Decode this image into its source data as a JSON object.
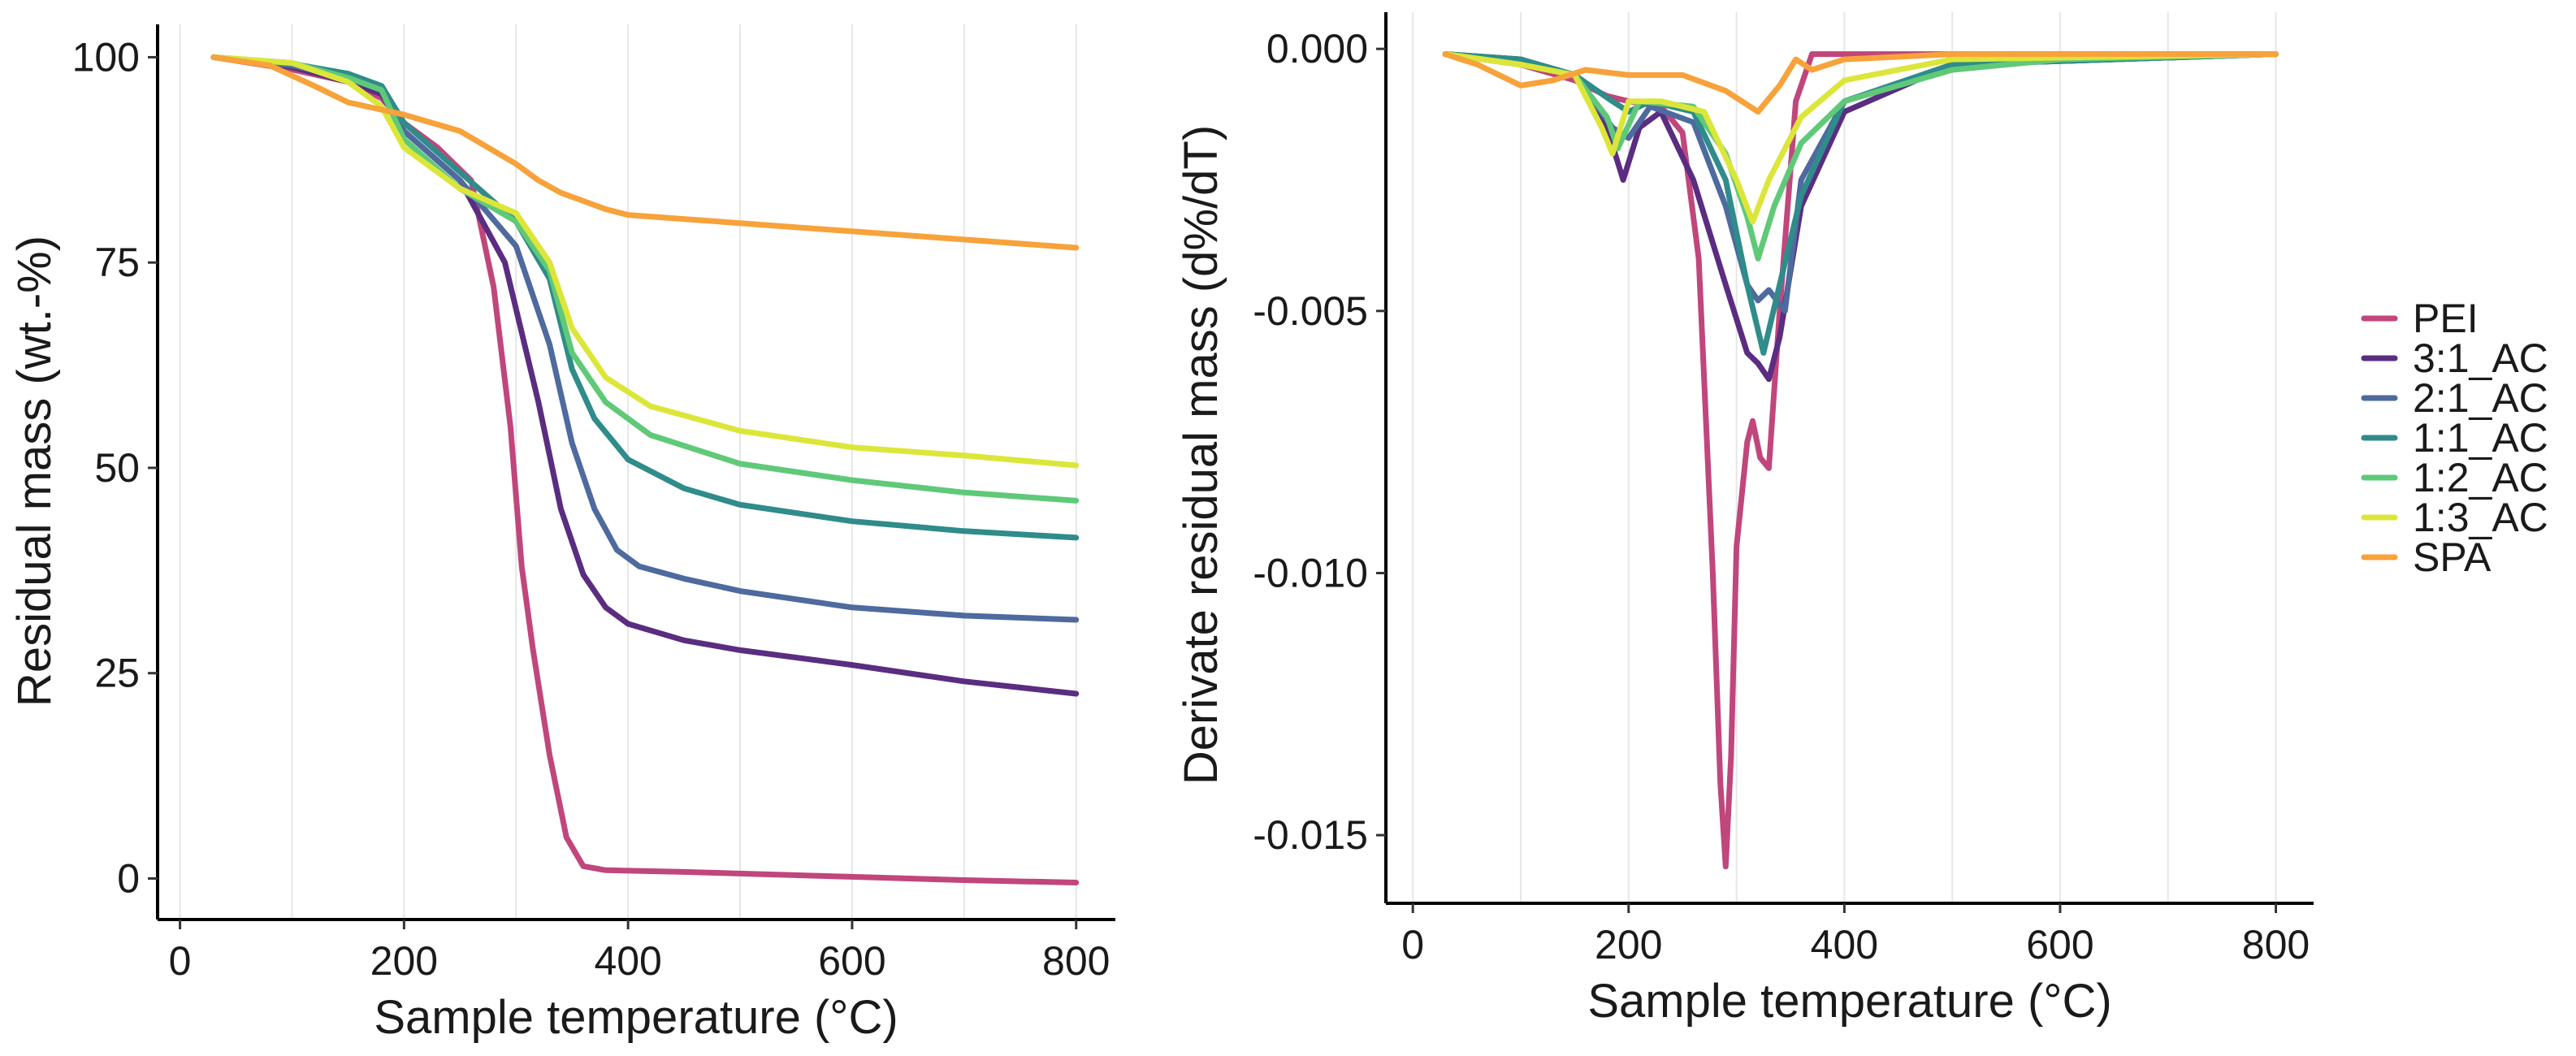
{
  "chart_data": [
    {
      "type": "line",
      "title": "",
      "xlabel": "Sample temperature (°C)",
      "ylabel": "Residual mass (wt.-%)",
      "xlim": [
        -20,
        835
      ],
      "ylim": [
        -5,
        104
      ],
      "x_ticks": [
        0,
        200,
        400,
        600,
        800
      ],
      "x_tick_labels": [
        "0",
        "200",
        "400",
        "600",
        "800"
      ],
      "y_ticks": [
        0,
        25,
        50,
        75,
        100
      ],
      "y_tick_labels": [
        "0",
        "25",
        "50",
        "75",
        "100"
      ],
      "x_minor_grid": [
        100,
        300,
        500,
        700
      ],
      "y_minor_grid": [
        12.5,
        37.5,
        62.5,
        87.5
      ],
      "grid": "vertical only",
      "series": [
        {
          "name": "PEI",
          "color": "#c0467c",
          "x": [
            30,
            100,
            150,
            180,
            200,
            230,
            260,
            280,
            295,
            305,
            315,
            330,
            345,
            360,
            380,
            450,
            600,
            700,
            800
          ],
          "y": [
            100,
            98.5,
            97,
            95,
            92,
            89,
            85,
            72,
            55,
            38,
            28,
            15,
            5,
            1.5,
            1,
            0.8,
            0.2,
            -0.2,
            -0.5
          ]
        },
        {
          "name": "3:1_AC",
          "color": "#5a2d81",
          "x": [
            30,
            100,
            150,
            180,
            200,
            250,
            290,
            320,
            340,
            360,
            380,
            400,
            450,
            500,
            600,
            700,
            800
          ],
          "y": [
            100,
            98.8,
            97,
            95.5,
            91,
            85,
            75,
            58,
            45,
            37,
            33,
            31,
            29,
            27.8,
            26,
            24,
            22.5
          ]
        },
        {
          "name": "2:1_AC",
          "color": "#4e6a9e",
          "x": [
            30,
            100,
            150,
            180,
            200,
            250,
            300,
            330,
            350,
            370,
            390,
            410,
            450,
            500,
            600,
            700,
            800
          ],
          "y": [
            100,
            99,
            97.5,
            96,
            91,
            85,
            77,
            65,
            53,
            45,
            40,
            38,
            36.5,
            35,
            33,
            32,
            31.5
          ]
        },
        {
          "name": "1:1_AC",
          "color": "#2f8c8a",
          "x": [
            30,
            100,
            150,
            180,
            200,
            250,
            300,
            330,
            350,
            370,
            400,
            450,
            500,
            600,
            700,
            800
          ],
          "y": [
            100,
            99.2,
            98,
            96.5,
            92,
            86,
            80,
            73,
            62,
            56,
            51,
            47.5,
            45.5,
            43.5,
            42.3,
            41.5
          ]
        },
        {
          "name": "1:2_AC",
          "color": "#5fc978",
          "x": [
            30,
            100,
            150,
            180,
            200,
            250,
            300,
            330,
            350,
            380,
            420,
            500,
            600,
            700,
            800
          ],
          "y": [
            100,
            99.3,
            97.5,
            96,
            90,
            84,
            80,
            74,
            64,
            58,
            54,
            50.5,
            48.5,
            47,
            46
          ]
        },
        {
          "name": "1:3_AC",
          "color": "#dce63a",
          "x": [
            30,
            100,
            150,
            180,
            200,
            250,
            300,
            330,
            350,
            380,
            420,
            500,
            600,
            700,
            800
          ],
          "y": [
            100,
            99.3,
            97,
            94,
            89,
            84,
            81,
            75,
            67,
            61,
            57.5,
            54.5,
            52.5,
            51.5,
            50.3
          ]
        },
        {
          "name": "SPA",
          "color": "#f7a23a",
          "x": [
            30,
            80,
            120,
            150,
            200,
            250,
            300,
            320,
            340,
            360,
            380,
            400,
            500,
            600,
            700,
            800
          ],
          "y": [
            100,
            99,
            96.5,
            94.5,
            93,
            91,
            87,
            85,
            83.5,
            82.5,
            81.5,
            80.8,
            79.8,
            78.8,
            77.8,
            76.8
          ]
        }
      ]
    },
    {
      "type": "line",
      "title": "",
      "xlabel": "Sample temperature (°C)",
      "ylabel": "Derivate residual mass (d%/dT)",
      "xlim": [
        -25,
        835
      ],
      "ylim": [
        -0.0163,
        0.0007
      ],
      "x_ticks": [
        0,
        200,
        400,
        600,
        800
      ],
      "x_tick_labels": [
        "0",
        "200",
        "400",
        "600",
        "800"
      ],
      "y_ticks": [
        0.0,
        -0.005,
        -0.01,
        -0.015
      ],
      "y_tick_labels": [
        "0.000",
        "-0.005",
        "-0.010",
        "-0.015"
      ],
      "x_minor_grid": [
        100,
        300,
        500,
        700
      ],
      "y_minor_grid": [
        -0.0025,
        -0.0075,
        -0.0125
      ],
      "grid": "vertical only",
      "series": [
        {
          "name": "PEI",
          "color": "#c0467c",
          "x": [
            30,
            100,
            150,
            180,
            200,
            230,
            250,
            265,
            278,
            285,
            290,
            295,
            300,
            310,
            315,
            322,
            330,
            340,
            355,
            370,
            400,
            800
          ],
          "y": [
            -0.0001,
            -0.0003,
            -0.0006,
            -0.0009,
            -0.001,
            -0.0011,
            -0.0016,
            -0.004,
            -0.01,
            -0.014,
            -0.0156,
            -0.0135,
            -0.0095,
            -0.0075,
            -0.0071,
            -0.0078,
            -0.008,
            -0.005,
            -0.001,
            -0.0001,
            -0.0001,
            -0.0001
          ]
        },
        {
          "name": "3:1_AC",
          "color": "#5a2d81",
          "x": [
            30,
            100,
            150,
            180,
            195,
            210,
            230,
            260,
            290,
            310,
            320,
            330,
            340,
            360,
            400,
            500,
            800
          ],
          "y": [
            -0.0001,
            -0.0002,
            -0.0005,
            -0.0015,
            -0.0025,
            -0.0015,
            -0.0012,
            -0.0025,
            -0.0045,
            -0.0058,
            -0.006,
            -0.0063,
            -0.0055,
            -0.003,
            -0.0012,
            -0.0003,
            -0.0001
          ]
        },
        {
          "name": "2:1_AC",
          "color": "#4e6a9e",
          "x": [
            30,
            100,
            150,
            185,
            200,
            220,
            260,
            290,
            310,
            320,
            330,
            345,
            360,
            400,
            500,
            800
          ],
          "y": [
            -0.0001,
            -0.0002,
            -0.0005,
            -0.0015,
            -0.0017,
            -0.0011,
            -0.0014,
            -0.003,
            -0.0045,
            -0.0048,
            -0.0046,
            -0.005,
            -0.0025,
            -0.001,
            -0.0003,
            -0.0001
          ]
        },
        {
          "name": "1:1_AC",
          "color": "#2f8c8a",
          "x": [
            30,
            100,
            150,
            185,
            200,
            220,
            260,
            290,
            310,
            325,
            340,
            360,
            400,
            500,
            800
          ],
          "y": [
            -0.0001,
            -0.0002,
            -0.0005,
            -0.001,
            -0.0012,
            -0.001,
            -0.0012,
            -0.0025,
            -0.0045,
            -0.0058,
            -0.0045,
            -0.0028,
            -0.001,
            -0.0003,
            -0.0001
          ]
        },
        {
          "name": "1:2_AC",
          "color": "#5fc978",
          "x": [
            30,
            100,
            150,
            180,
            190,
            210,
            260,
            290,
            310,
            320,
            335,
            360,
            400,
            500,
            600,
            800
          ],
          "y": [
            -0.0001,
            -0.0003,
            -0.0005,
            -0.0013,
            -0.0019,
            -0.001,
            -0.0011,
            -0.002,
            -0.0032,
            -0.004,
            -0.003,
            -0.0018,
            -0.001,
            -0.0004,
            -0.0002,
            -0.0001
          ]
        },
        {
          "name": "1:3_AC",
          "color": "#dce63a",
          "x": [
            30,
            100,
            150,
            175,
            185,
            200,
            230,
            270,
            300,
            315,
            330,
            360,
            400,
            500,
            800
          ],
          "y": [
            -0.0001,
            -0.0003,
            -0.0005,
            -0.0015,
            -0.002,
            -0.001,
            -0.001,
            -0.0012,
            -0.0025,
            -0.0033,
            -0.0025,
            -0.0013,
            -0.0006,
            -0.0002,
            -0.0001
          ]
        },
        {
          "name": "SPA",
          "color": "#f7a23a",
          "x": [
            30,
            60,
            100,
            130,
            160,
            200,
            250,
            290,
            320,
            340,
            355,
            370,
            400,
            500,
            800
          ],
          "y": [
            -0.0001,
            -0.0003,
            -0.0007,
            -0.0006,
            -0.0004,
            -0.0005,
            -0.0005,
            -0.0008,
            -0.0012,
            -0.0007,
            -0.0002,
            -0.0004,
            -0.0002,
            -0.0001,
            -0.0001
          ]
        }
      ]
    }
  ],
  "legend": {
    "position": "right",
    "items": [
      {
        "label": "PEI",
        "color": "#c0467c"
      },
      {
        "label": "3:1_AC",
        "color": "#5a2d81"
      },
      {
        "label": "2:1_AC",
        "color": "#4e6a9e"
      },
      {
        "label": "1:1_AC",
        "color": "#2f8c8a"
      },
      {
        "label": "1:2_AC",
        "color": "#5fc978"
      },
      {
        "label": "1:3_AC",
        "color": "#dce63a"
      },
      {
        "label": "SPA",
        "color": "#f7a23a"
      }
    ]
  }
}
